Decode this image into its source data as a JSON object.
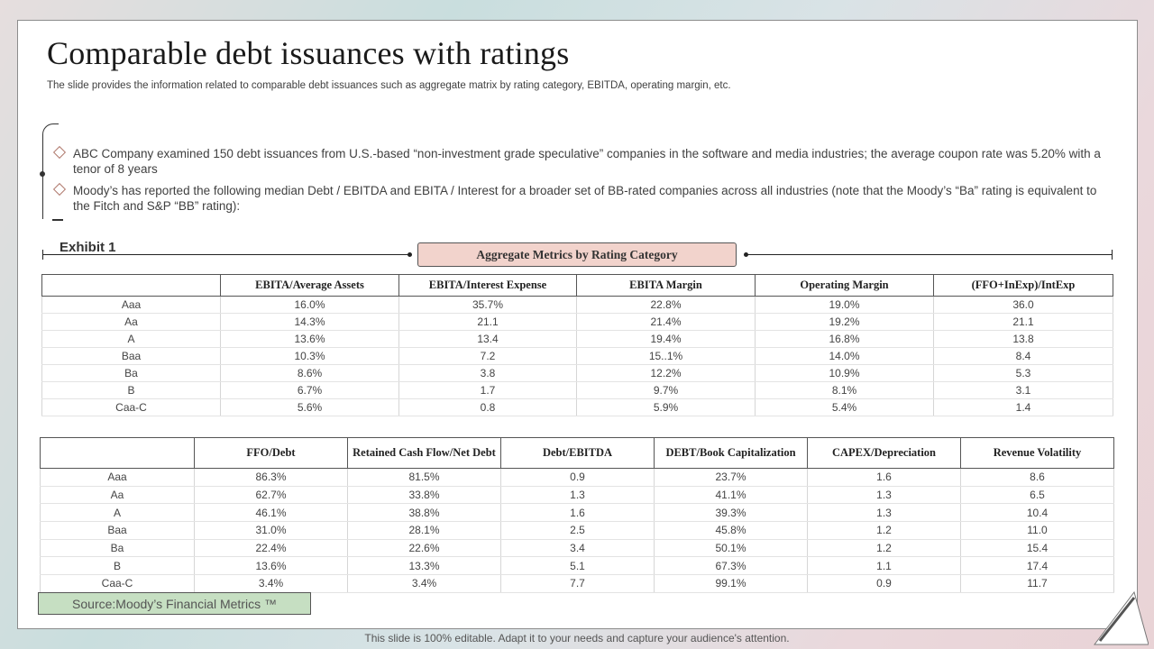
{
  "header": {
    "title": "Comparable debt issuances with ratings",
    "subtitle": "The slide provides the information related to comparable debt issuances such as aggregate matrix by rating category, EBITDA,  operating margin, etc."
  },
  "bullets": [
    "ABC Company examined 150 debt issuances from U.S.-based “non-investment grade speculative” companies in the software and media industries; the average coupon rate was 5.20% with a tenor of 8 years",
    "Moody’s has reported the following median Debt / EBITDA and EBITA / Interest for a broader set of BB-rated companies across all industries (note that the Moody’s “Ba” rating is equivalent to the Fitch and S&P “BB” rating):"
  ],
  "exhibit": {
    "label": "Exhibit 1",
    "banner": "Aggregate Metrics by Rating Category"
  },
  "table1": {
    "headers": [
      "",
      "EBITA/Average  Assets",
      "EBITA/Interest  Expense",
      "EBITA  Margin",
      "Operating Margin",
      "(FFO+InExp)/IntExp"
    ],
    "rows": [
      [
        "Aaa",
        "16.0%",
        "35.7%",
        "22.8%",
        "19.0%",
        "36.0"
      ],
      [
        "Aa",
        "14.3%",
        "21.1",
        "21.4%",
        "19.2%",
        "21.1"
      ],
      [
        "A",
        "13.6%",
        "13.4",
        "19.4%",
        "16.8%",
        "13.8"
      ],
      [
        "Baa",
        "10.3%",
        "7.2",
        "15..1%",
        "14.0%",
        "8.4"
      ],
      [
        "Ba",
        "8.6%",
        "3.8",
        "12.2%",
        "10.9%",
        "5.3"
      ],
      [
        "B",
        "6.7%",
        "1.7",
        "9.7%",
        "8.1%",
        "3.1"
      ],
      [
        "Caa-C",
        "5.6%",
        "0.8",
        "5.9%",
        "5.4%",
        "1.4"
      ]
    ]
  },
  "table2": {
    "headers": [
      "",
      "FFO/Debt",
      "Retained Cash Flow/Net Debt",
      "Debt/EBITDA",
      "DEBT/Book Capitalization",
      "CAPEX/Depreciation",
      "Revenue Volatility"
    ],
    "rows": [
      [
        "Aaa",
        "86.3%",
        "81.5%",
        "0.9",
        "23.7%",
        "1.6",
        "8.6"
      ],
      [
        "Aa",
        "62.7%",
        "33.8%",
        "1.3",
        "41.1%",
        "1.3",
        "6.5"
      ],
      [
        "A",
        "46.1%",
        "38.8%",
        "1.6",
        "39.3%",
        "1.3",
        "10.4"
      ],
      [
        "Baa",
        "31.0%",
        "28.1%",
        "2.5",
        "45.8%",
        "1.2",
        "11.0"
      ],
      [
        "Ba",
        "22.4%",
        "22.6%",
        "3.4",
        "50.1%",
        "1.2",
        "15.4"
      ],
      [
        "B",
        "13.6%",
        "13.3%",
        "5.1",
        "67.3%",
        "1.1",
        "17.4"
      ],
      [
        "Caa-C",
        "3.4%",
        "3.4%",
        "7.7",
        "99.1%",
        "0.9",
        "11.7"
      ]
    ]
  },
  "source": "Source:Moody’s Financial Metrics ™",
  "footer": "This slide is 100% editable. Adapt it to your needs and capture your audience's attention."
}
